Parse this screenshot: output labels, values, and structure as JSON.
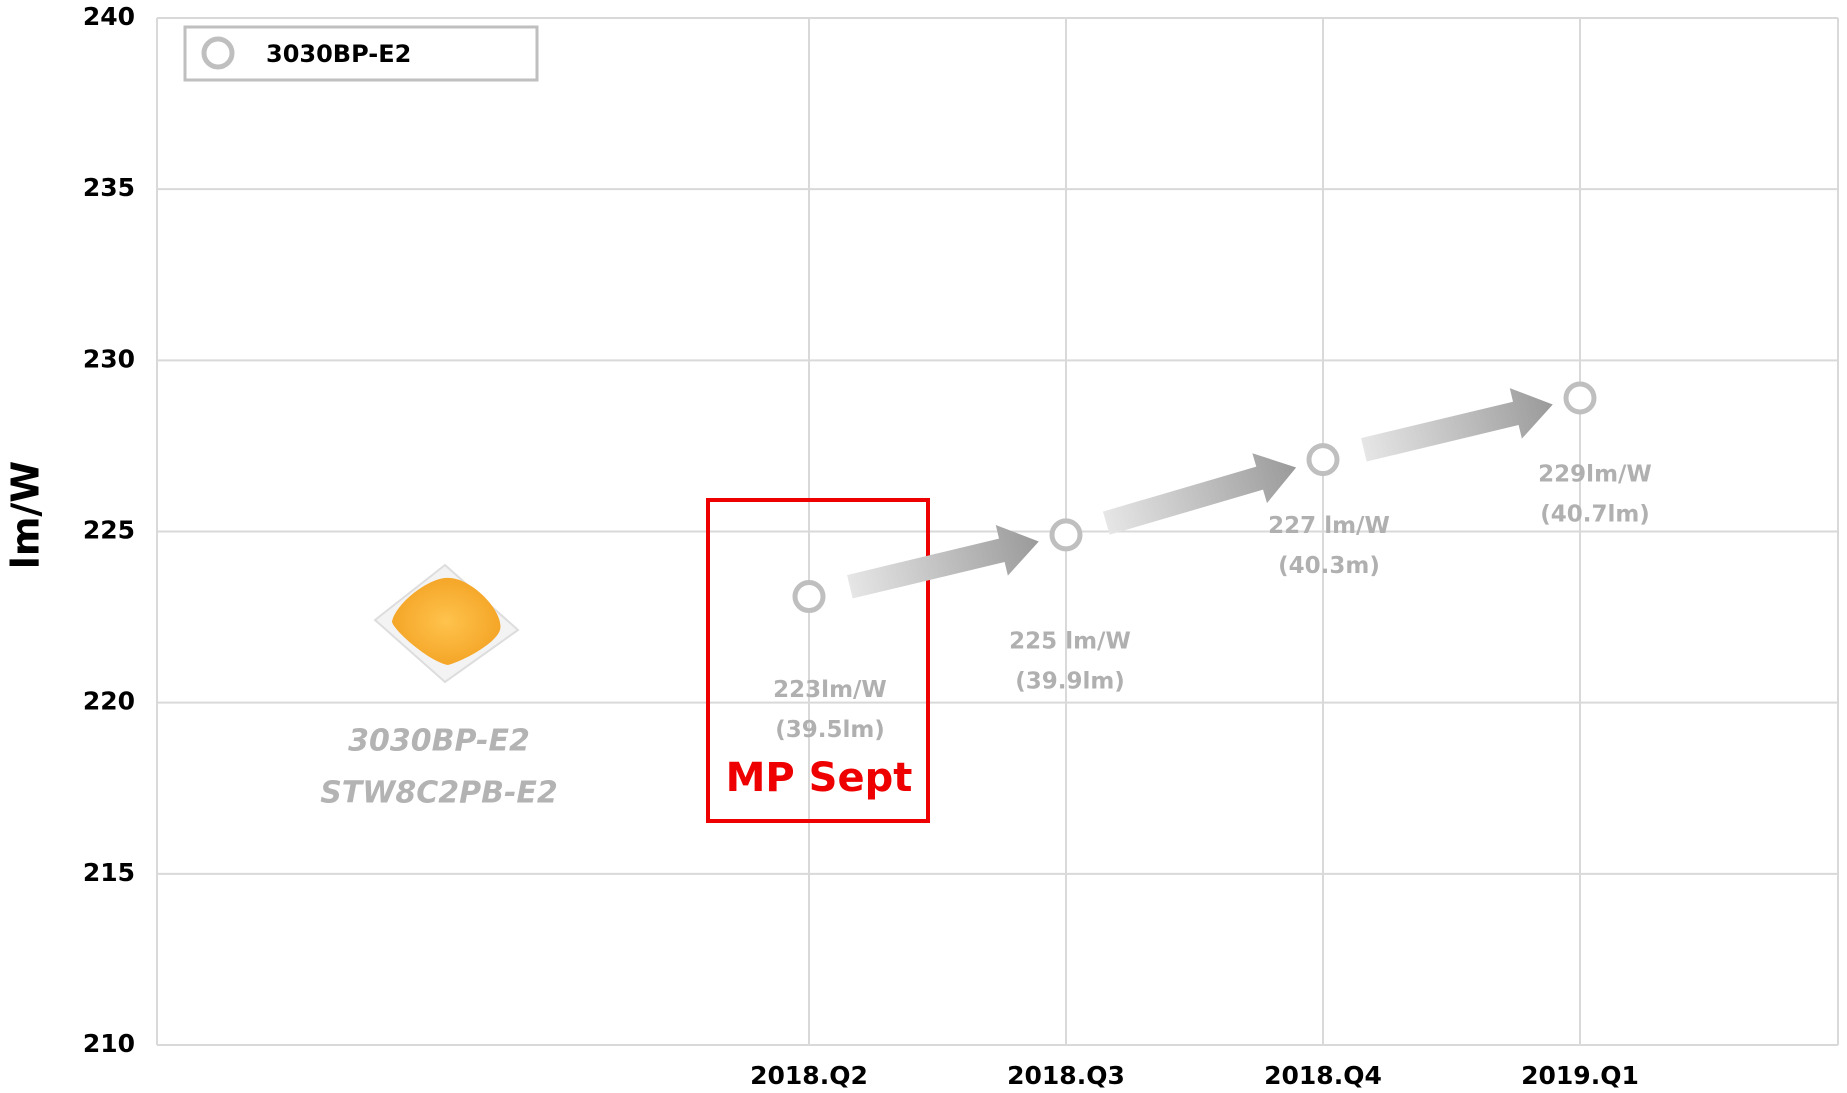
{
  "chart_data": {
    "type": "line",
    "y_label": "lm/W",
    "categories": [
      null,
      null,
      "2018.Q2",
      "2018.Q3",
      "2018.Q4",
      "2019.Q1"
    ],
    "series": [
      {
        "name": "3030BP-E2",
        "color": "#bfbfbf",
        "values": [
          null,
          null,
          223.1,
          224.9,
          227.1,
          228.9
        ],
        "value_labels": [
          null,
          null,
          "223lm/W",
          "225 lm/W",
          "227 lm/W",
          "229lm/W"
        ],
        "flux_labels": [
          null,
          null,
          "(39.5lm)",
          "(39.9lm)",
          "(40.3m)",
          "(40.7lm)"
        ]
      }
    ],
    "ylim": [
      210,
      240
    ],
    "yticks": [
      210,
      215,
      220,
      225,
      230,
      235,
      240
    ],
    "grid": true,
    "product_labels": [
      "3030BP-E2",
      "STW8C2PB-E2"
    ],
    "annotation": "MP Sept"
  }
}
